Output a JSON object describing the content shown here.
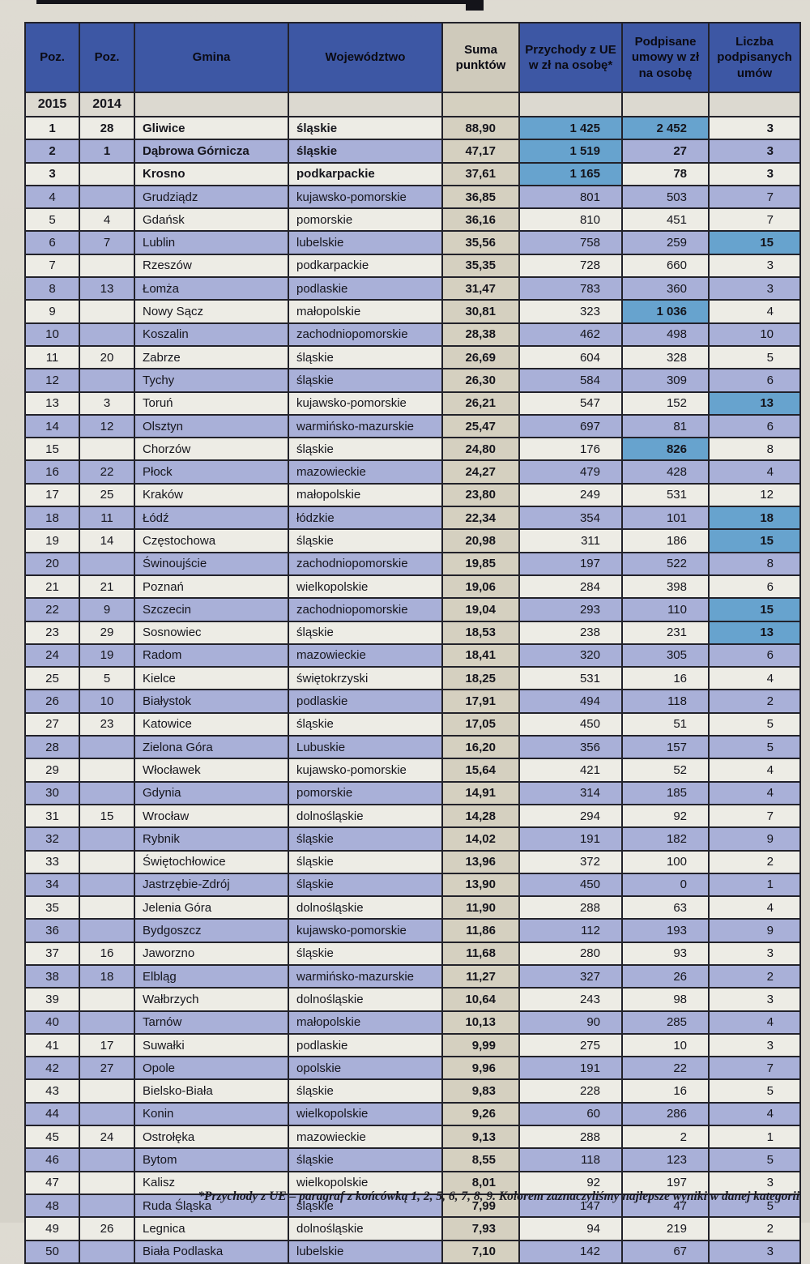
{
  "colors": {
    "header_blue": "#3d57a4",
    "row_blue": "#a9b0d8",
    "row_white": "#edece5",
    "highlight_blue": "#67a3ce",
    "suma_beige": "#d5d0c0",
    "suma_header_beige": "#cfcabb",
    "subheader_bg": "#dcd9d0",
    "border": "#22222a",
    "paper": "#d8d5cc"
  },
  "table": {
    "headers": [
      "Poz.",
      "Poz.",
      "Gmina",
      "Województwo",
      "Suma punktów",
      "Przychody z UE w zł na osobę*",
      "Podpisane umowy w zł na osobę",
      "Liczba podpisanych umów"
    ],
    "subheader": {
      "year_left": "2015",
      "year_right": "2014"
    },
    "rows": [
      {
        "p15": "1",
        "p14": "28",
        "gmina": "Gliwice",
        "woj": "śląskie",
        "suma": "88,90",
        "ue": "1 425",
        "umowy": "2 452",
        "n": "3",
        "b": true,
        "hue": true,
        "hum": true
      },
      {
        "p15": "2",
        "p14": "1",
        "gmina": "Dąbrowa Górnicza",
        "woj": "śląskie",
        "suma": "47,17",
        "ue": "1 519",
        "umowy": "27",
        "n": "3",
        "b": true,
        "hue": true
      },
      {
        "p15": "3",
        "p14": "",
        "gmina": "Krosno",
        "woj": "podkarpackie",
        "suma": "37,61",
        "ue": "1 165",
        "umowy": "78",
        "n": "3",
        "b": true,
        "hue": true
      },
      {
        "p15": "4",
        "p14": "",
        "gmina": "Grudziądz",
        "woj": "kujawsko-pomorskie",
        "suma": "36,85",
        "ue": "801",
        "umowy": "503",
        "n": "7"
      },
      {
        "p15": "5",
        "p14": "4",
        "gmina": "Gdańsk",
        "woj": "pomorskie",
        "suma": "36,16",
        "ue": "810",
        "umowy": "451",
        "n": "7"
      },
      {
        "p15": "6",
        "p14": "7",
        "gmina": "Lublin",
        "woj": "lubelskie",
        "suma": "35,56",
        "ue": "758",
        "umowy": "259",
        "n": "15",
        "hn": true
      },
      {
        "p15": "7",
        "p14": "",
        "gmina": "Rzeszów",
        "woj": "podkarpackie",
        "suma": "35,35",
        "ue": "728",
        "umowy": "660",
        "n": "3"
      },
      {
        "p15": "8",
        "p14": "13",
        "gmina": "Łomża",
        "woj": "podlaskie",
        "suma": "31,47",
        "ue": "783",
        "umowy": "360",
        "n": "3"
      },
      {
        "p15": "9",
        "p14": "",
        "gmina": "Nowy Sącz",
        "woj": "małopolskie",
        "suma": "30,81",
        "ue": "323",
        "umowy": "1 036",
        "n": "4",
        "hum": true
      },
      {
        "p15": "10",
        "p14": "",
        "gmina": "Koszalin",
        "woj": "zachodniopomorskie",
        "suma": "28,38",
        "ue": "462",
        "umowy": "498",
        "n": "10"
      },
      {
        "p15": "11",
        "p14": "20",
        "gmina": "Zabrze",
        "woj": "śląskie",
        "suma": "26,69",
        "ue": "604",
        "umowy": "328",
        "n": "5"
      },
      {
        "p15": "12",
        "p14": "",
        "gmina": "Tychy",
        "woj": "śląskie",
        "suma": "26,30",
        "ue": "584",
        "umowy": "309",
        "n": "6"
      },
      {
        "p15": "13",
        "p14": "3",
        "gmina": "Toruń",
        "woj": "kujawsko-pomorskie",
        "suma": "26,21",
        "ue": "547",
        "umowy": "152",
        "n": "13",
        "hn": true
      },
      {
        "p15": "14",
        "p14": "12",
        "gmina": "Olsztyn",
        "woj": "warmińsko-mazurskie",
        "suma": "25,47",
        "ue": "697",
        "umowy": "81",
        "n": "6"
      },
      {
        "p15": "15",
        "p14": "",
        "gmina": "Chorzów",
        "woj": "śląskie",
        "suma": "24,80",
        "ue": "176",
        "umowy": "826",
        "n": "8",
        "hum": true
      },
      {
        "p15": "16",
        "p14": "22",
        "gmina": "Płock",
        "woj": "mazowieckie",
        "suma": "24,27",
        "ue": "479",
        "umowy": "428",
        "n": "4"
      },
      {
        "p15": "17",
        "p14": "25",
        "gmina": "Kraków",
        "woj": "małopolskie",
        "suma": "23,80",
        "ue": "249",
        "umowy": "531",
        "n": "12"
      },
      {
        "p15": "18",
        "p14": "11",
        "gmina": "Łódź",
        "woj": "łódzkie",
        "suma": "22,34",
        "ue": "354",
        "umowy": "101",
        "n": "18",
        "hn": true
      },
      {
        "p15": "19",
        "p14": "14",
        "gmina": "Częstochowa",
        "woj": "śląskie",
        "suma": "20,98",
        "ue": "311",
        "umowy": "186",
        "n": "15",
        "hn": true
      },
      {
        "p15": "20",
        "p14": "",
        "gmina": "Świnoujście",
        "woj": "zachodniopomorskie",
        "suma": "19,85",
        "ue": "197",
        "umowy": "522",
        "n": "8"
      },
      {
        "p15": "21",
        "p14": "21",
        "gmina": "Poznań",
        "woj": "wielkopolskie",
        "suma": "19,06",
        "ue": "284",
        "umowy": "398",
        "n": "6"
      },
      {
        "p15": "22",
        "p14": "9",
        "gmina": "Szczecin",
        "woj": "zachodniopomorskie",
        "suma": "19,04",
        "ue": "293",
        "umowy": "110",
        "n": "15",
        "hn": true
      },
      {
        "p15": "23",
        "p14": "29",
        "gmina": "Sosnowiec",
        "woj": "śląskie",
        "suma": "18,53",
        "ue": "238",
        "umowy": "231",
        "n": "13",
        "hn": true
      },
      {
        "p15": "24",
        "p14": "19",
        "gmina": "Radom",
        "woj": "mazowieckie",
        "suma": "18,41",
        "ue": "320",
        "umowy": "305",
        "n": "6"
      },
      {
        "p15": "25",
        "p14": "5",
        "gmina": "Kielce",
        "woj": "świętokrzyski",
        "suma": "18,25",
        "ue": "531",
        "umowy": "16",
        "n": "4"
      },
      {
        "p15": "26",
        "p14": "10",
        "gmina": "Białystok",
        "woj": "podlaskie",
        "suma": "17,91",
        "ue": "494",
        "umowy": "118",
        "n": "2"
      },
      {
        "p15": "27",
        "p14": "23",
        "gmina": "Katowice",
        "woj": "śląskie",
        "suma": "17,05",
        "ue": "450",
        "umowy": "51",
        "n": "5"
      },
      {
        "p15": "28",
        "p14": "",
        "gmina": "Zielona Góra",
        "woj": "Lubuskie",
        "suma": "16,20",
        "ue": "356",
        "umowy": "157",
        "n": "5"
      },
      {
        "p15": "29",
        "p14": "",
        "gmina": "Włocławek",
        "woj": "kujawsko-pomorskie",
        "suma": "15,64",
        "ue": "421",
        "umowy": "52",
        "n": "4"
      },
      {
        "p15": "30",
        "p14": "",
        "gmina": "Gdynia",
        "woj": "pomorskie",
        "suma": "14,91",
        "ue": "314",
        "umowy": "185",
        "n": "4"
      },
      {
        "p15": "31",
        "p14": "15",
        "gmina": "Wrocław",
        "woj": "dolnośląskie",
        "suma": "14,28",
        "ue": "294",
        "umowy": "92",
        "n": "7"
      },
      {
        "p15": "32",
        "p14": "",
        "gmina": "Rybnik",
        "woj": "śląskie",
        "suma": "14,02",
        "ue": "191",
        "umowy": "182",
        "n": "9"
      },
      {
        "p15": "33",
        "p14": "",
        "gmina": "Świętochłowice",
        "woj": "śląskie",
        "suma": "13,96",
        "ue": "372",
        "umowy": "100",
        "n": "2"
      },
      {
        "p15": "34",
        "p14": "",
        "gmina": "Jastrzębie-Zdrój",
        "woj": "śląskie",
        "suma": "13,90",
        "ue": "450",
        "umowy": "0",
        "n": "1"
      },
      {
        "p15": "35",
        "p14": "",
        "gmina": "Jelenia Góra",
        "woj": "dolnośląskie",
        "suma": "11,90",
        "ue": "288",
        "umowy": "63",
        "n": "4"
      },
      {
        "p15": "36",
        "p14": "",
        "gmina": "Bydgoszcz",
        "woj": "kujawsko-pomorskie",
        "suma": "11,86",
        "ue": "112",
        "umowy": "193",
        "n": "9"
      },
      {
        "p15": "37",
        "p14": "16",
        "gmina": "Jaworzno",
        "woj": "śląskie",
        "suma": "11,68",
        "ue": "280",
        "umowy": "93",
        "n": "3"
      },
      {
        "p15": "38",
        "p14": "18",
        "gmina": "Elbląg",
        "woj": "warmińsko-mazurskie",
        "suma": "11,27",
        "ue": "327",
        "umowy": "26",
        "n": "2"
      },
      {
        "p15": "39",
        "p14": "",
        "gmina": "Wałbrzych",
        "woj": "dolnośląskie",
        "suma": "10,64",
        "ue": "243",
        "umowy": "98",
        "n": "3"
      },
      {
        "p15": "40",
        "p14": "",
        "gmina": "Tarnów",
        "woj": "małopolskie",
        "suma": "10,13",
        "ue": "90",
        "umowy": "285",
        "n": "4"
      },
      {
        "p15": "41",
        "p14": "17",
        "gmina": "Suwałki",
        "woj": "podlaskie",
        "suma": "9,99",
        "ue": "275",
        "umowy": "10",
        "n": "3"
      },
      {
        "p15": "42",
        "p14": "27",
        "gmina": "Opole",
        "woj": "opolskie",
        "suma": "9,96",
        "ue": "191",
        "umowy": "22",
        "n": "7"
      },
      {
        "p15": "43",
        "p14": "",
        "gmina": "Bielsko-Biała",
        "woj": "śląskie",
        "suma": "9,83",
        "ue": "228",
        "umowy": "16",
        "n": "5"
      },
      {
        "p15": "44",
        "p14": "",
        "gmina": "Konin",
        "woj": "wielkopolskie",
        "suma": "9,26",
        "ue": "60",
        "umowy": "286",
        "n": "4"
      },
      {
        "p15": "45",
        "p14": "24",
        "gmina": "Ostrołęka",
        "woj": "mazowieckie",
        "suma": "9,13",
        "ue": "288",
        "umowy": "2",
        "n": "1"
      },
      {
        "p15": "46",
        "p14": "",
        "gmina": "Bytom",
        "woj": "śląskie",
        "suma": "8,55",
        "ue": "118",
        "umowy": "123",
        "n": "5"
      },
      {
        "p15": "47",
        "p14": "",
        "gmina": "Kalisz",
        "woj": "wielkopolskie",
        "suma": "8,01",
        "ue": "92",
        "umowy": "197",
        "n": "3"
      },
      {
        "p15": "48",
        "p14": "",
        "gmina": "Ruda Śląska",
        "woj": "śląskie",
        "suma": "7,99",
        "ue": "147",
        "umowy": "47",
        "n": "5"
      },
      {
        "p15": "49",
        "p14": "26",
        "gmina": "Legnica",
        "woj": "dolnośląskie",
        "suma": "7,93",
        "ue": "94",
        "umowy": "219",
        "n": "2"
      },
      {
        "p15": "50",
        "p14": "",
        "gmina": "Biała Podlaska",
        "woj": "lubelskie",
        "suma": "7,10",
        "ue": "142",
        "umowy": "67",
        "n": "3"
      }
    ],
    "footnote": "*Przychody z UE – paragraf z końcówką 1, 2, 5, 6, 7, 8, 9. Kolorem zaznaczyliśmy najlepsze wyniki w danej kategorii"
  }
}
